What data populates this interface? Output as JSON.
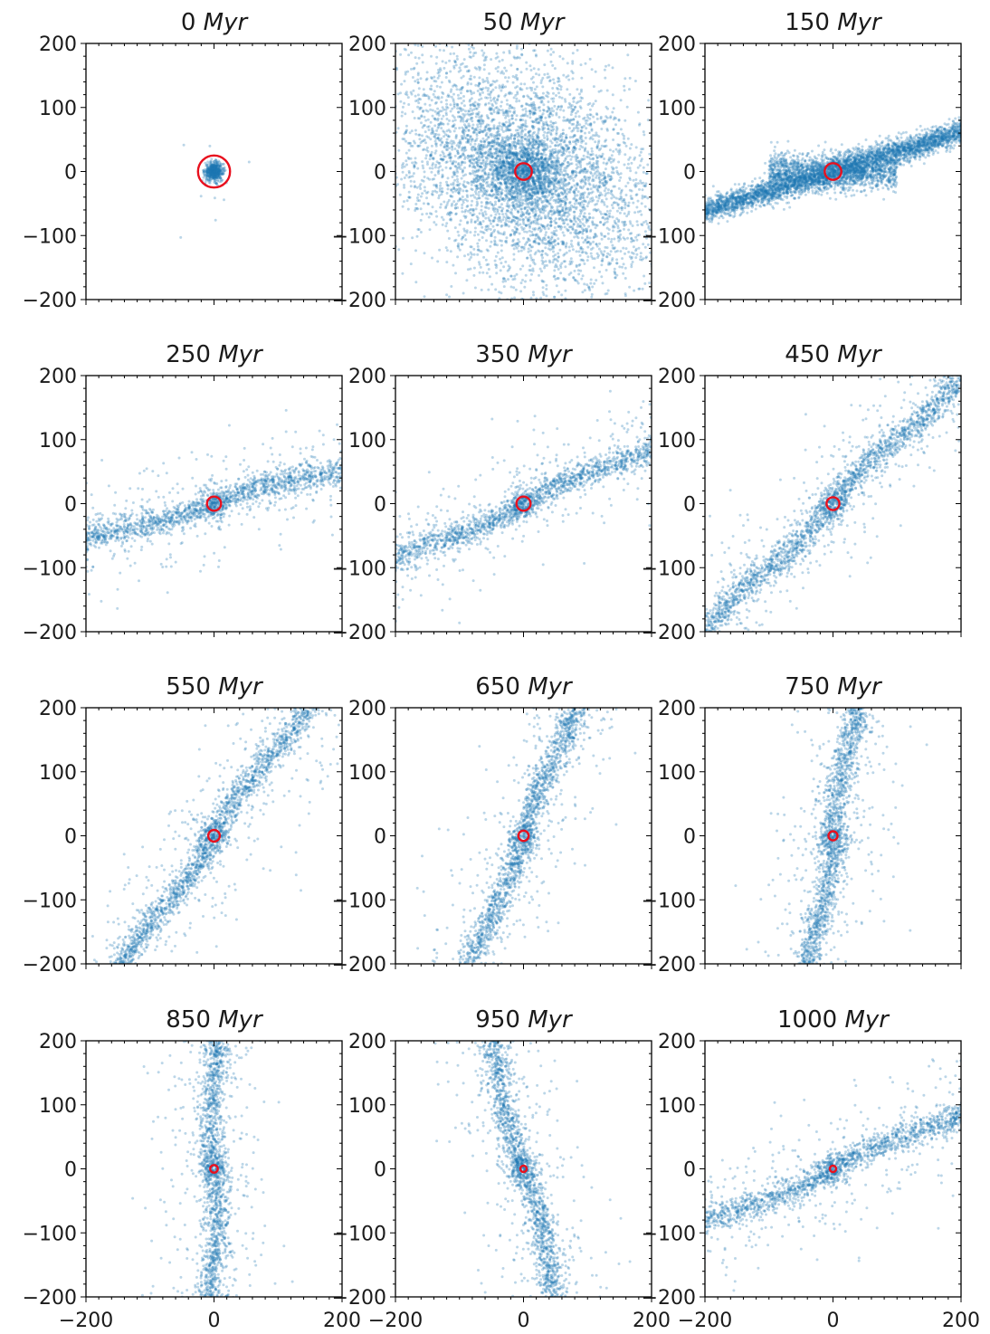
{
  "figure": {
    "chart_data": [
      {
        "type": "scatter",
        "title_value": "0",
        "title_unit": "Myr",
        "pattern": "clump",
        "angle_deg": 0,
        "xlim": [
          -200,
          200
        ],
        "ylim": [
          -200,
          200
        ],
        "xticks": [
          -200,
          0,
          200
        ],
        "yticks": [
          -200,
          -100,
          0,
          100,
          200
        ],
        "marker_color": "#1f77b4",
        "center_marker": {
          "x": 0,
          "y": 0,
          "radius": 25,
          "color": "#e8101e"
        }
      },
      {
        "type": "scatter",
        "title_value": "50",
        "title_unit": "Myr",
        "pattern": "cloud",
        "angle_deg": -35,
        "xlim": [
          -200,
          200
        ],
        "ylim": [
          -200,
          200
        ],
        "xticks": [
          -200,
          0,
          200
        ],
        "yticks": [
          -200,
          -100,
          0,
          100,
          200
        ],
        "marker_color": "#1f77b4",
        "center_marker": {
          "x": 0,
          "y": 0,
          "radius": 13,
          "color": "#e8101e"
        }
      },
      {
        "type": "scatter",
        "title_value": "150",
        "title_unit": "Myr",
        "pattern": "bar",
        "angle_deg": 17,
        "xlim": [
          -200,
          200
        ],
        "ylim": [
          -200,
          200
        ],
        "xticks": [
          -200,
          0,
          200
        ],
        "yticks": [
          -200,
          -100,
          0,
          100,
          200
        ],
        "marker_color": "#1f77b4",
        "center_marker": {
          "x": 0,
          "y": 0,
          "radius": 13,
          "color": "#e8101e"
        }
      },
      {
        "type": "scatter",
        "title_value": "250",
        "title_unit": "Myr",
        "pattern": "stream",
        "angle_deg": 16,
        "xlim": [
          -200,
          200
        ],
        "ylim": [
          -200,
          200
        ],
        "xticks": [
          -200,
          0,
          200
        ],
        "yticks": [
          -200,
          -100,
          0,
          100,
          200
        ],
        "marker_color": "#1f77b4",
        "center_marker": {
          "x": 0,
          "y": 0,
          "radius": 11,
          "color": "#e8101e"
        }
      },
      {
        "type": "scatter",
        "title_value": "350",
        "title_unit": "Myr",
        "pattern": "stream",
        "angle_deg": 24,
        "xlim": [
          -200,
          200
        ],
        "ylim": [
          -200,
          200
        ],
        "xticks": [
          -200,
          0,
          200
        ],
        "yticks": [
          -200,
          -100,
          0,
          100,
          200
        ],
        "marker_color": "#1f77b4",
        "center_marker": {
          "x": 0,
          "y": 0,
          "radius": 11,
          "color": "#e8101e"
        }
      },
      {
        "type": "scatter",
        "title_value": "450",
        "title_unit": "Myr",
        "pattern": "stream",
        "angle_deg": 45,
        "xlim": [
          -200,
          200
        ],
        "ylim": [
          -200,
          200
        ],
        "xticks": [
          -200,
          0,
          200
        ],
        "yticks": [
          -200,
          -100,
          0,
          100,
          200
        ],
        "marker_color": "#1f77b4",
        "center_marker": {
          "x": 0,
          "y": 0,
          "radius": 10,
          "color": "#e8101e"
        }
      },
      {
        "type": "scatter",
        "title_value": "550",
        "title_unit": "Myr",
        "pattern": "stream",
        "angle_deg": 55,
        "xlim": [
          -200,
          200
        ],
        "ylim": [
          -200,
          200
        ],
        "xticks": [
          -200,
          0,
          200
        ],
        "yticks": [
          -200,
          -100,
          0,
          100,
          200
        ],
        "marker_color": "#1f77b4",
        "center_marker": {
          "x": 0,
          "y": 0,
          "radius": 9,
          "color": "#e8101e"
        }
      },
      {
        "type": "scatter",
        "title_value": "650",
        "title_unit": "Myr",
        "pattern": "stream",
        "angle_deg": 68,
        "xlim": [
          -200,
          200
        ],
        "ylim": [
          -200,
          200
        ],
        "xticks": [
          -200,
          0,
          200
        ],
        "yticks": [
          -200,
          -100,
          0,
          100,
          200
        ],
        "marker_color": "#1f77b4",
        "center_marker": {
          "x": 0,
          "y": 0,
          "radius": 8,
          "color": "#e8101e"
        }
      },
      {
        "type": "scatter",
        "title_value": "750",
        "title_unit": "Myr",
        "pattern": "stream",
        "angle_deg": 80,
        "xlim": [
          -200,
          200
        ],
        "ylim": [
          -200,
          200
        ],
        "xticks": [
          -200,
          0,
          200
        ],
        "yticks": [
          -200,
          -100,
          0,
          100,
          200
        ],
        "marker_color": "#1f77b4",
        "center_marker": {
          "x": 0,
          "y": 0,
          "radius": 7,
          "color": "#e8101e"
        }
      },
      {
        "type": "scatter",
        "title_value": "850",
        "title_unit": "Myr",
        "pattern": "stream",
        "angle_deg": 90,
        "xlim": [
          -200,
          200
        ],
        "ylim": [
          -200,
          200
        ],
        "xticks": [
          -200,
          0,
          200
        ],
        "yticks": [
          -200,
          -100,
          0,
          100,
          200
        ],
        "marker_color": "#1f77b4",
        "center_marker": {
          "x": 0,
          "y": 0,
          "radius": 6,
          "color": "#e8101e"
        }
      },
      {
        "type": "scatter",
        "title_value": "950",
        "title_unit": "Myr",
        "pattern": "stream",
        "angle_deg": 105,
        "xlim": [
          -200,
          200
        ],
        "ylim": [
          -200,
          200
        ],
        "xticks": [
          -200,
          0,
          200
        ],
        "yticks": [
          -200,
          -100,
          0,
          100,
          200
        ],
        "marker_color": "#1f77b4",
        "center_marker": {
          "x": 0,
          "y": 0,
          "radius": 5,
          "color": "#e8101e"
        }
      },
      {
        "type": "scatter",
        "title_value": "1000",
        "title_unit": "Myr",
        "pattern": "stream",
        "angle_deg": 24,
        "xlim": [
          -200,
          200
        ],
        "ylim": [
          -200,
          200
        ],
        "xticks": [
          -200,
          0,
          200
        ],
        "yticks": [
          -200,
          -100,
          0,
          100,
          200
        ],
        "marker_color": "#1f77b4",
        "center_marker": {
          "x": 0,
          "y": 0,
          "radius": 5,
          "color": "#e8101e"
        }
      }
    ]
  }
}
